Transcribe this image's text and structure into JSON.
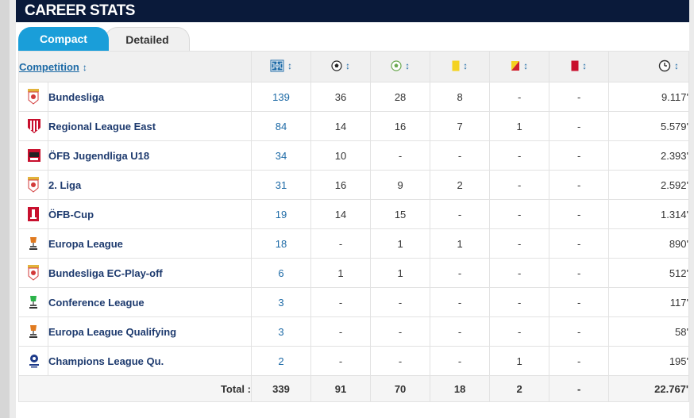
{
  "header": {
    "title": "CAREER STATS"
  },
  "tabs": [
    {
      "label": "Compact",
      "active": true
    },
    {
      "label": "Detailed",
      "active": false
    }
  ],
  "table": {
    "competition_header": "Competition",
    "column_icons": [
      "pitch-appearances-icon",
      "ball-goals-icon",
      "ball-assists-icon",
      "yellow-card-icon",
      "yellow-red-card-icon",
      "red-card-icon",
      "clock-minutes-icon"
    ],
    "rows": [
      {
        "logo": "bundesliga-logo",
        "competition": "Bundesliga",
        "apps": "139",
        "goals": "36",
        "assists": "28",
        "yellow": "8",
        "second_yellow": "-",
        "red": "-",
        "minutes": "9.117'"
      },
      {
        "logo": "regional-league-east-logo",
        "competition": "Regional League East",
        "apps": "84",
        "goals": "14",
        "assists": "16",
        "yellow": "7",
        "second_yellow": "1",
        "red": "-",
        "minutes": "5.579'"
      },
      {
        "logo": "ofb-jugendliga-logo",
        "competition": "ÖFB Jugendliga U18",
        "apps": "34",
        "goals": "10",
        "assists": "-",
        "yellow": "-",
        "second_yellow": "-",
        "red": "-",
        "minutes": "2.393'"
      },
      {
        "logo": "2-liga-logo",
        "competition": "2. Liga",
        "apps": "31",
        "goals": "16",
        "assists": "9",
        "yellow": "2",
        "second_yellow": "-",
        "red": "-",
        "minutes": "2.592'"
      },
      {
        "logo": "ofb-cup-logo",
        "competition": "ÖFB-Cup",
        "apps": "19",
        "goals": "14",
        "assists": "15",
        "yellow": "-",
        "second_yellow": "-",
        "red": "-",
        "minutes": "1.314'"
      },
      {
        "logo": "europa-league-logo",
        "competition": "Europa League",
        "apps": "18",
        "goals": "-",
        "assists": "1",
        "yellow": "1",
        "second_yellow": "-",
        "red": "-",
        "minutes": "890'"
      },
      {
        "logo": "bundesliga-ec-playoff-logo",
        "competition": "Bundesliga EC-Play-off",
        "apps": "6",
        "goals": "1",
        "assists": "1",
        "yellow": "-",
        "second_yellow": "-",
        "red": "-",
        "minutes": "512'"
      },
      {
        "logo": "conference-league-logo",
        "competition": "Conference League",
        "apps": "3",
        "goals": "-",
        "assists": "-",
        "yellow": "-",
        "second_yellow": "-",
        "red": "-",
        "minutes": "117'"
      },
      {
        "logo": "europa-league-qualifying-logo",
        "competition": "Europa League Qualifying",
        "apps": "3",
        "goals": "-",
        "assists": "-",
        "yellow": "-",
        "second_yellow": "-",
        "red": "-",
        "minutes": "58'"
      },
      {
        "logo": "champions-league-logo",
        "competition": "Champions League Qu.",
        "apps": "2",
        "goals": "-",
        "assists": "-",
        "yellow": "-",
        "second_yellow": "1",
        "red": "-",
        "minutes": "195'"
      }
    ],
    "total": {
      "label": "Total :",
      "apps": "339",
      "goals": "91",
      "assists": "70",
      "yellow": "18",
      "second_yellow": "2",
      "red": "-",
      "minutes": "22.767'"
    }
  },
  "colors": {
    "header_bg": "#0a1a3a",
    "tab_active": "#1a9ed9",
    "link": "#1d6aa6",
    "competition_text": "#1d3a6e"
  }
}
